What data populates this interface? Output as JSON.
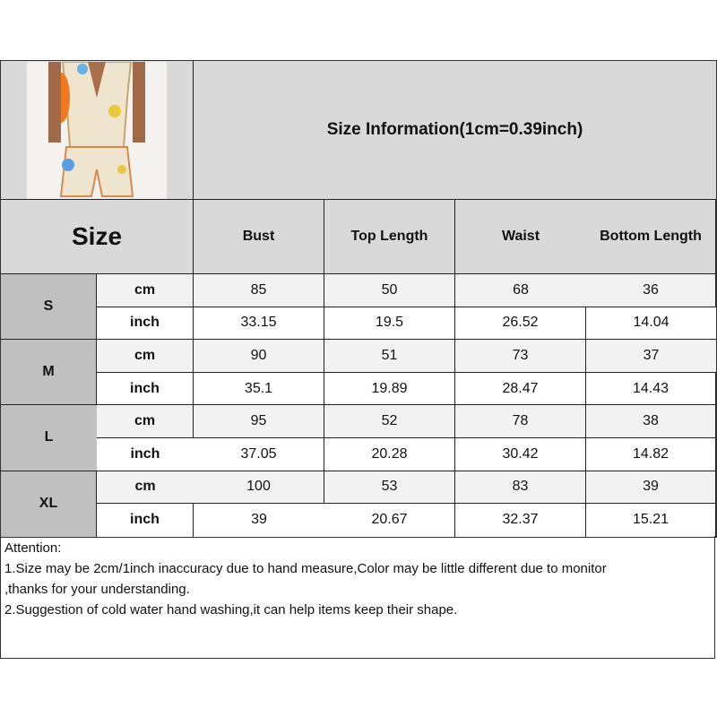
{
  "title": "Size Information(1cm=0.39inch)",
  "size_header": "Size",
  "columns": [
    "Bust",
    "Top Length",
    "Waist",
    "Bottom Length"
  ],
  "sizes": [
    {
      "size": "S",
      "rows": [
        {
          "unit": "cm",
          "values": [
            "85",
            "50",
            "68",
            "36"
          ]
        },
        {
          "unit": "inch",
          "values": [
            "33.15",
            "19.5",
            "26.52",
            "14.04"
          ]
        }
      ]
    },
    {
      "size": "M",
      "rows": [
        {
          "unit": "cm",
          "values": [
            "90",
            "51",
            "73",
            "37"
          ]
        },
        {
          "unit": "inch",
          "values": [
            "35.1",
            "19.89",
            "28.47",
            "14.43"
          ]
        }
      ]
    },
    {
      "size": "L",
      "rows": [
        {
          "unit": "cm",
          "values": [
            "95",
            "52",
            "78",
            "38"
          ]
        },
        {
          "unit": "inch",
          "values": [
            "37.05",
            "20.28",
            "30.42",
            "14.82"
          ]
        }
      ]
    },
    {
      "size": "XL",
      "rows": [
        {
          "unit": "cm",
          "values": [
            "100",
            "53",
            "83",
            "39"
          ]
        },
        {
          "unit": "inch",
          "values": [
            "39",
            "20.67",
            "32.37",
            "15.21"
          ]
        }
      ]
    }
  ],
  "attention": {
    "heading": "Attention:",
    "lines": [
      "1.Size may be 2cm/1inch inaccuracy due to hand measure,Color may be little different due to monitor",
      ",thanks for your understanding.",
      "2.Suggestion of cold water hand washing,it can help items keep their shape."
    ]
  },
  "colors": {
    "header": "#d9d9d9",
    "size_cell": "#c0c0c0",
    "cm_row": "#f2f2f2",
    "inch_row": "#ffffff"
  }
}
